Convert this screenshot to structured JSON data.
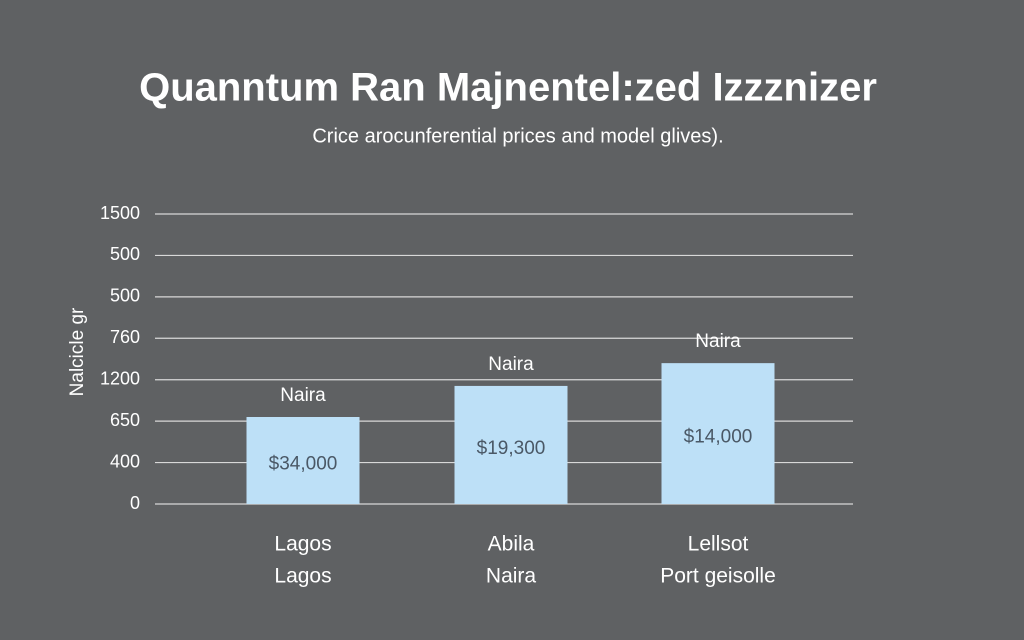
{
  "chart_data": {
    "type": "bar",
    "title": "Quanntum Ran Majnentel:zed Izzznizer",
    "subtitle": "Crice arocunferential prices and model glives).",
    "y_label": "Nalcicle gr",
    "categories": [
      "Lagos",
      "Abila",
      "Lellsot"
    ],
    "subcategories": [
      "Lagos",
      "Naira",
      "Port geisolle"
    ],
    "values": [
      2.1,
      2.85,
      3.4
    ],
    "top_labels": [
      "Naira",
      "Naira",
      "Naira"
    ],
    "inner_labels": [
      "$34,000",
      "$19,300",
      "$14,000"
    ],
    "color": "#bde0f7",
    "ylim": [
      0,
      7
    ],
    "yticks": [
      0,
      {
        "value": 1,
        "label": "400"
      },
      {
        "value": 2,
        "label": "650"
      },
      {
        "value": 3,
        "label": "1200"
      },
      {
        "value": 4,
        "label": "760"
      },
      {
        "value": 5,
        "label": "500"
      },
      {
        "value": 6,
        "label": "500"
      },
      {
        "value": 7,
        "label": "1500"
      }
    ],
    "grid": true
  }
}
